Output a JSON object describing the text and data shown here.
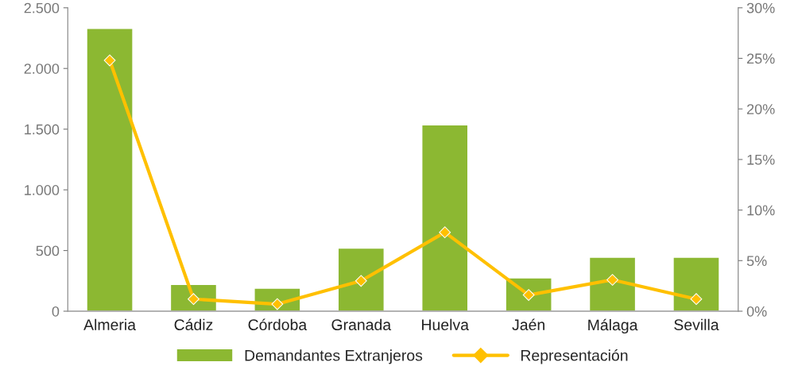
{
  "chart_data": {
    "type": "bar",
    "categories": [
      "Almeria",
      "Cádiz",
      "Córdoba",
      "Granada",
      "Huelva",
      "Jaén",
      "Málaga",
      "Sevilla"
    ],
    "series": [
      {
        "name": "Demandantes Extranjeros",
        "color": "#8cb832",
        "values": [
          2330,
          220,
          190,
          520,
          1535,
          275,
          445,
          445
        ]
      },
      {
        "name": "Representación",
        "type": "line",
        "axis": "y2",
        "color": "#ffc000",
        "marker": "diamond",
        "values": [
          24.8,
          1.2,
          0.7,
          3.0,
          7.8,
          1.6,
          3.1,
          1.2
        ]
      }
    ],
    "ylim": [
      0,
      2500
    ],
    "yticks": [
      0,
      500,
      {
        "value": 1000,
        "label": "1.000"
      },
      {
        "value": 1500,
        "label": "1.500"
      },
      {
        "value": 2000,
        "label": "2.000"
      },
      {
        "value": 2500,
        "label": "2.500"
      }
    ],
    "y2lim": [
      0,
      30
    ],
    "y2ticks": [
      {
        "value": 0,
        "label": "0%"
      },
      {
        "value": 5,
        "label": "5%"
      },
      {
        "value": 10,
        "label": "10%"
      },
      {
        "value": 15,
        "label": "15%"
      },
      {
        "value": 20,
        "label": "20%"
      },
      {
        "value": 25,
        "label": "25%"
      },
      {
        "value": 30,
        "label": "30%"
      }
    ],
    "grid": false,
    "legend": "bottom"
  }
}
